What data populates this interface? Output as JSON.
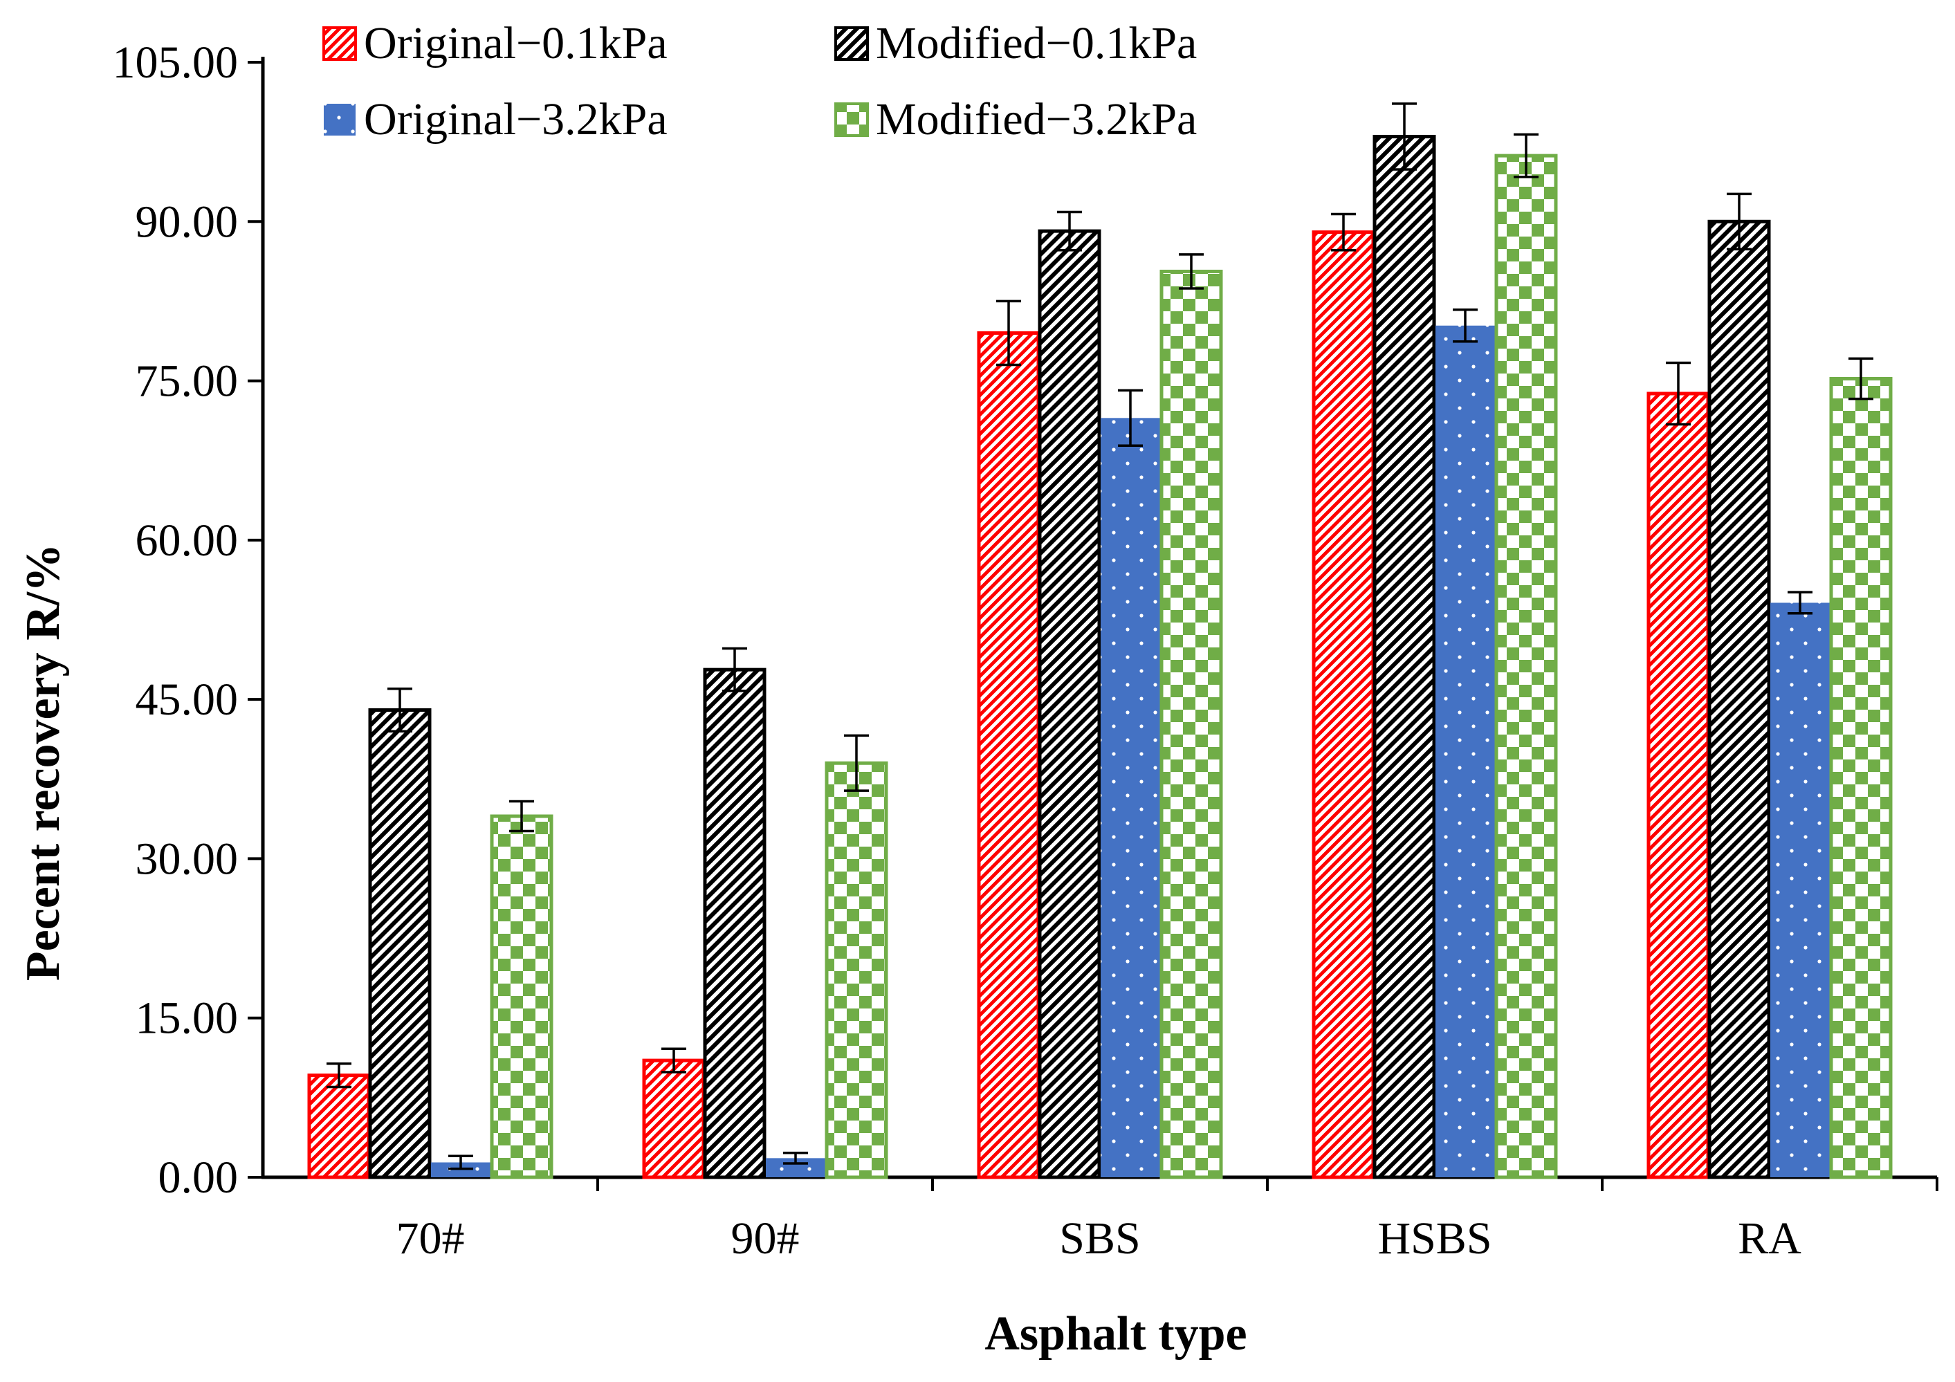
{
  "chart_data": {
    "type": "bar",
    "title": "",
    "xlabel": "Asphalt type",
    "ylabel": "Pecent recovery R/%",
    "ylim": [
      0,
      105
    ],
    "yticks": [
      0,
      15,
      30,
      45,
      60,
      75,
      90,
      105
    ],
    "ytick_labels": [
      "0.00",
      "15.00",
      "30.00",
      "45.00",
      "60.00",
      "75.00",
      "90.00",
      "105.00"
    ],
    "categories": [
      "70#",
      "90#",
      "SBS",
      "HSBS",
      "RA"
    ],
    "grid": false,
    "legend_position": "top",
    "error_bars": true,
    "series": [
      {
        "name": "Original−0.1kPa",
        "color": "#ff0000",
        "pattern": "diagonal-stripes",
        "values": [
          9.6,
          11.0,
          79.5,
          89.0,
          73.8
        ],
        "errors": [
          1.1,
          1.1,
          3.0,
          1.7,
          2.9
        ]
      },
      {
        "name": "Modified−0.1kPa",
        "color": "#000000",
        "pattern": "diagonal-stripes",
        "values": [
          44.0,
          47.8,
          89.1,
          98.0,
          90.0
        ],
        "errors": [
          2.0,
          2.0,
          1.8,
          3.1,
          2.6
        ]
      },
      {
        "name": "Original−3.2kPa",
        "color": "#4472c4",
        "pattern": "dotted",
        "values": [
          1.4,
          1.8,
          71.5,
          80.2,
          54.1
        ],
        "errors": [
          0.6,
          0.5,
          2.6,
          1.5,
          1.0
        ]
      },
      {
        "name": "Modified−3.2kPa",
        "color": "#70ad47",
        "pattern": "checkerboard",
        "values": [
          34.0,
          39.0,
          85.3,
          96.2,
          75.2
        ],
        "errors": [
          1.4,
          2.6,
          1.6,
          2.0,
          1.9
        ]
      }
    ]
  }
}
